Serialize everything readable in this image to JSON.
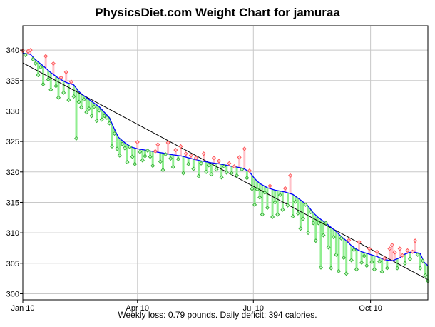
{
  "chart_data": {
    "type": "line",
    "title": "PhysicsDiet.com Weight Chart for jamuraa",
    "footer": "Weekly loss: 0.79 pounds. Daily deficit: 394 calories.",
    "xlabel": "",
    "ylabel": "",
    "ylim": [
      299,
      344
    ],
    "y_ticks": [
      300,
      305,
      310,
      315,
      320,
      325,
      330,
      335,
      340
    ],
    "x_ticks": [
      {
        "label": "Jan 10",
        "day": 0
      },
      {
        "label": "Apr 10",
        "day": 90
      },
      {
        "label": "Jul 10",
        "day": 181
      },
      {
        "label": "Oct 10",
        "day": 273
      }
    ],
    "xlim_days": [
      0,
      318
    ],
    "trend_line": {
      "start": [
        0,
        337.9
      ],
      "end": [
        318,
        302.3
      ]
    },
    "moving_average": [
      [
        0,
        339.5
      ],
      [
        6,
        339.3
      ],
      [
        10,
        338.4
      ],
      [
        16,
        337.4
      ],
      [
        22,
        336.3
      ],
      [
        28,
        335.4
      ],
      [
        34,
        334.7
      ],
      [
        40,
        334.3
      ],
      [
        44,
        333.2
      ],
      [
        48,
        332.5
      ],
      [
        52,
        331.9
      ],
      [
        56,
        331.3
      ],
      [
        60,
        330.7
      ],
      [
        64,
        329.8
      ],
      [
        68,
        328.9
      ],
      [
        72,
        327.0
      ],
      [
        75,
        325.7
      ],
      [
        80,
        324.8
      ],
      [
        85,
        324.1
      ],
      [
        90,
        323.8
      ],
      [
        96,
        323.6
      ],
      [
        104,
        323.3
      ],
      [
        110,
        323.1
      ],
      [
        118,
        322.8
      ],
      [
        125,
        322.6
      ],
      [
        132,
        322.2
      ],
      [
        140,
        321.8
      ],
      [
        148,
        321.5
      ],
      [
        155,
        321.3
      ],
      [
        162,
        321.0
      ],
      [
        168,
        320.8
      ],
      [
        173,
        320.6
      ],
      [
        178,
        320.0
      ],
      [
        182,
        318.9
      ],
      [
        186,
        318.1
      ],
      [
        192,
        317.4
      ],
      [
        198,
        317.0
      ],
      [
        206,
        316.7
      ],
      [
        212,
        316.3
      ],
      [
        218,
        315.4
      ],
      [
        224,
        314.4
      ],
      [
        228,
        313.3
      ],
      [
        232,
        312.5
      ],
      [
        238,
        311.6
      ],
      [
        242,
        310.9
      ],
      [
        246,
        310.2
      ],
      [
        250,
        309.4
      ],
      [
        254,
        308.7
      ],
      [
        258,
        307.9
      ],
      [
        262,
        307.3
      ],
      [
        266,
        306.9
      ],
      [
        272,
        306.5
      ],
      [
        278,
        306.1
      ],
      [
        284,
        305.6
      ],
      [
        290,
        305.4
      ],
      [
        296,
        305.9
      ],
      [
        300,
        306.5
      ],
      [
        304,
        306.8
      ],
      [
        308,
        306.8
      ],
      [
        312,
        306.6
      ],
      [
        315,
        305.2
      ],
      [
        318,
        304.6
      ]
    ],
    "weights": [
      [
        0,
        339.9
      ],
      [
        2,
        339.2
      ],
      [
        4,
        339.8
      ],
      [
        6,
        340.0
      ],
      [
        8,
        338.5
      ],
      [
        10,
        337.8
      ],
      [
        12,
        335.9
      ],
      [
        14,
        337.2
      ],
      [
        16,
        334.4
      ],
      [
        18,
        339.0
      ],
      [
        20,
        335.2
      ],
      [
        22,
        333.5
      ],
      [
        24,
        337.8
      ],
      [
        26,
        334.1
      ],
      [
        28,
        332.2
      ],
      [
        30,
        335.5
      ],
      [
        32,
        333.0
      ],
      [
        34,
        336.4
      ],
      [
        36,
        331.8
      ],
      [
        38,
        334.8
      ],
      [
        40,
        332.4
      ],
      [
        42,
        325.5
      ],
      [
        44,
        331.5
      ],
      [
        46,
        330.6
      ],
      [
        48,
        331.9
      ],
      [
        50,
        329.8
      ],
      [
        52,
        330.4
      ],
      [
        54,
        329.2
      ],
      [
        56,
        330.7
      ],
      [
        58,
        328.4
      ],
      [
        60,
        330.1
      ],
      [
        62,
        328.6
      ],
      [
        64,
        329.2
      ],
      [
        66,
        328.9
      ],
      [
        68,
        328.0
      ],
      [
        70,
        324.2
      ],
      [
        72,
        326.3
      ],
      [
        74,
        323.8
      ],
      [
        76,
        322.7
      ],
      [
        78,
        324.6
      ],
      [
        80,
        323.9
      ],
      [
        82,
        321.6
      ],
      [
        84,
        324.1
      ],
      [
        86,
        322.5
      ],
      [
        88,
        321.3
      ],
      [
        90,
        324.9
      ],
      [
        92,
        323.3
      ],
      [
        94,
        321.9
      ],
      [
        96,
        322.6
      ],
      [
        98,
        323.5
      ],
      [
        100,
        322.5
      ],
      [
        102,
        321.0
      ],
      [
        104,
        323.4
      ],
      [
        106,
        324.5
      ],
      [
        108,
        321.7
      ],
      [
        110,
        320.3
      ],
      [
        112,
        322.9
      ],
      [
        114,
        324.8
      ],
      [
        116,
        322.2
      ],
      [
        118,
        320.8
      ],
      [
        120,
        323.6
      ],
      [
        122,
        322.1
      ],
      [
        124,
        324.2
      ],
      [
        126,
        319.8
      ],
      [
        128,
        323.0
      ],
      [
        130,
        321.3
      ],
      [
        132,
        322.7
      ],
      [
        134,
        320.5
      ],
      [
        136,
        322.3
      ],
      [
        138,
        319.3
      ],
      [
        140,
        321.4
      ],
      [
        142,
        323.0
      ],
      [
        144,
        320.0
      ],
      [
        146,
        321.1
      ],
      [
        148,
        319.6
      ],
      [
        150,
        322.3
      ],
      [
        152,
        320.4
      ],
      [
        154,
        321.8
      ],
      [
        156,
        319.1
      ],
      [
        158,
        320.9
      ],
      [
        160,
        319.9
      ],
      [
        162,
        321.4
      ],
      [
        164,
        319.8
      ],
      [
        166,
        320.9
      ],
      [
        168,
        319.4
      ],
      [
        170,
        322.4
      ],
      [
        172,
        320.4
      ],
      [
        174,
        323.8
      ],
      [
        176,
        319.0
      ],
      [
        178,
        320.2
      ],
      [
        180,
        317.2
      ],
      [
        182,
        314.6
      ],
      [
        184,
        317.1
      ],
      [
        186,
        315.8
      ],
      [
        188,
        313.0
      ],
      [
        190,
        316.6
      ],
      [
        192,
        314.1
      ],
      [
        194,
        317.7
      ],
      [
        196,
        312.6
      ],
      [
        198,
        315.0
      ],
      [
        200,
        313.0
      ],
      [
        202,
        316.2
      ],
      [
        204,
        313.8
      ],
      [
        206,
        317.3
      ],
      [
        208,
        314.5
      ],
      [
        210,
        319.4
      ],
      [
        212,
        312.7
      ],
      [
        214,
        315.1
      ],
      [
        216,
        313.2
      ],
      [
        218,
        310.7
      ],
      [
        220,
        312.3
      ],
      [
        222,
        314.6
      ],
      [
        224,
        310.0
      ],
      [
        226,
        313.4
      ],
      [
        228,
        311.6
      ],
      [
        230,
        308.7
      ],
      [
        232,
        311.6
      ],
      [
        234,
        304.3
      ],
      [
        236,
        309.6
      ],
      [
        238,
        311.6
      ],
      [
        240,
        307.6
      ],
      [
        242,
        304.2
      ],
      [
        244,
        309.3
      ],
      [
        246,
        306.4
      ],
      [
        248,
        303.7
      ],
      [
        250,
        309.1
      ],
      [
        252,
        305.9
      ],
      [
        254,
        303.3
      ],
      [
        256,
        308.8
      ],
      [
        258,
        305.5
      ],
      [
        260,
        307.2
      ],
      [
        262,
        304.0
      ],
      [
        264,
        308.5
      ],
      [
        266,
        305.1
      ],
      [
        268,
        306.2
      ],
      [
        270,
        304.6
      ],
      [
        272,
        307.4
      ],
      [
        274,
        305.2
      ],
      [
        276,
        304.0
      ],
      [
        278,
        306.9
      ],
      [
        280,
        305.3
      ],
      [
        282,
        303.6
      ],
      [
        284,
        305.8
      ],
      [
        286,
        304.2
      ],
      [
        288,
        307.4
      ],
      [
        290,
        308.0
      ],
      [
        292,
        306.8
      ],
      [
        294,
        304.2
      ],
      [
        296,
        307.4
      ],
      [
        298,
        306.3
      ],
      [
        300,
        305.0
      ],
      [
        302,
        307.1
      ],
      [
        304,
        305.7
      ],
      [
        306,
        306.9
      ],
      [
        308,
        308.7
      ],
      [
        310,
        306.4
      ],
      [
        312,
        304.2
      ],
      [
        314,
        305.4
      ],
      [
        316,
        303.0
      ],
      [
        318,
        302.1
      ]
    ],
    "colors": {
      "above_trend": "#ff5050",
      "above_fill": "#ffc0c8",
      "below_trend": "#30b030",
      "below_fill": "#90ee90",
      "moving_average": "#0000ff",
      "trend_line": "#000000",
      "grid": "#c8c8c8"
    },
    "grid": true
  }
}
